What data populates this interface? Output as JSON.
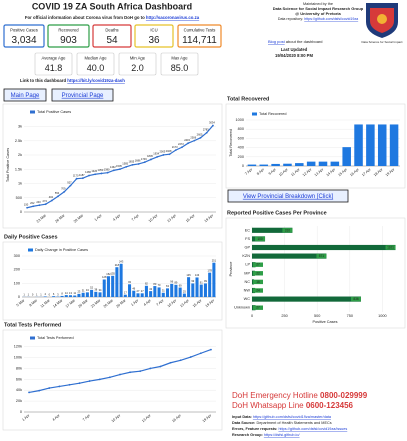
{
  "header": {
    "title": "COVID 19 ZA South Africa Dashboard",
    "subtitle_text": "For official information about Corona virus from DoH go to ",
    "subtitle_link": "http://sacoronavirus.co.za",
    "maintained": "Maintained by the",
    "group": "Data Science for Social Impact Research Group",
    "university": "@ University of Pretoria",
    "repo_text": "Data repository: ",
    "repo_link": "https://github.com/dsfsi/covid19za",
    "logo_caption": "Data Science for Social Impact",
    "blog_link": "Blog post",
    "blog_text": " about the dashboard",
    "updated_label": "Last Updated",
    "updated_value": "19/04/2020 8:00 PM",
    "dash_text": "Link to this dashboard ",
    "dash_link": "https://bit.ly/covid19za-dash"
  },
  "stats": [
    {
      "label": "Positive Cases",
      "value": "3,034",
      "color": "#2f6fd0"
    },
    {
      "label": "Recovered",
      "value": "903",
      "color": "#2e9e47"
    },
    {
      "label": "Deaths",
      "value": "54",
      "color": "#d63a3a"
    },
    {
      "label": "ICU",
      "value": "36",
      "color": "#e6c229"
    },
    {
      "label": "Cumulative Tests",
      "value": "114,711",
      "color": "#ef8a2a"
    }
  ],
  "ages": [
    {
      "label": "Average Age",
      "value": "41.8"
    },
    {
      "label": "Median Age",
      "value": "40.0"
    },
    {
      "label": "Min Age",
      "value": "2.0"
    },
    {
      "label": "Max Age",
      "value": "85.0"
    }
  ],
  "buttons": {
    "main": "Main Page",
    "provincial": "Provincial Page",
    "breakdown": "View Provincial Breakdown [Click]"
  },
  "chart_data": [
    {
      "type": "line",
      "ylabel": "Total Positive Cases",
      "grid": true,
      "data_labels": true,
      "categories": [
        null,
        null,
        null,
        "23 Mar",
        null,
        null,
        "26 Mar",
        null,
        null,
        "29 Mar",
        null,
        null,
        "1 Apr",
        null,
        null,
        "4 Apr",
        null,
        null,
        "7 Apr",
        null,
        null,
        "10 Apr",
        null,
        null,
        "13 Apr",
        null,
        null,
        "16 Apr",
        null,
        null,
        "19 Apr"
      ],
      "series": [
        {
          "name": "Total Positive Cases",
          "color": "#2f6fd0",
          "values": [
            150,
            202,
            240,
            274,
            402,
            554,
            709,
            927,
            1170,
            1187,
            1280,
            1326,
            1353,
            1380,
            1462,
            1505,
            1585,
            1655,
            1686,
            1749,
            1845,
            1934,
            2003,
            2028,
            2173,
            2272,
            2415,
            2506,
            2605,
            2783,
            3034
          ]
        }
      ],
      "ylim": [
        0,
        3300
      ],
      "yticks": [
        0,
        500,
        {
          "value": 1000,
          "label": "1k"
        },
        {
          "value": 1500,
          "label": "1.5k"
        },
        {
          "value": 2000,
          "label": "2k"
        },
        {
          "value": 2500,
          "label": "2.5k"
        },
        {
          "value": 3000,
          "label": "3k"
        }
      ]
    },
    {
      "type": "bar",
      "title": "Total Recovered",
      "ylabel": "Total Recovered",
      "grid": true,
      "categories": [
        "7 Apr",
        "8 Apr",
        "9 Apr",
        "10 Apr",
        "11 Apr",
        "12 Apr",
        "13 Apr",
        "14 Apr",
        "15 Apr",
        "16 Apr",
        "17 Apr",
        "18 Apr",
        "19 Apr"
      ],
      "series": [
        {
          "name": "Total Recovered",
          "color": "#1e78e0",
          "values": [
            31,
            31,
            45,
            50,
            63,
            95,
            95,
            95,
            410,
            903,
            903,
            903,
            903
          ]
        }
      ],
      "ylim": [
        0,
        1000
      ],
      "yticks": [
        0,
        200,
        400,
        600,
        800,
        1000
      ]
    },
    {
      "type": "bar",
      "title": "Daily Positive Cases",
      "grid": true,
      "data_labels": true,
      "categories": [
        "5 Mar",
        null,
        null,
        "8 Mar",
        null,
        null,
        "11 Mar",
        null,
        null,
        "14 Mar",
        null,
        null,
        "17 Mar",
        null,
        null,
        "20 Mar",
        null,
        null,
        "23 Mar",
        null,
        null,
        "26 Mar",
        null,
        null,
        "29 Mar",
        null,
        null,
        "1 Apr",
        null,
        null,
        "4 Apr",
        null,
        null,
        "7 Apr",
        null,
        null,
        "10 Apr",
        null,
        null,
        "13 Apr",
        null,
        null,
        "16 Apr",
        null,
        null,
        "19 Apr"
      ],
      "series": [
        {
          "name": "Daily Change in Positive Cases",
          "color": "#1e78e0",
          "values": [
            1,
            1,
            0,
            1,
            1,
            4,
            0,
            6,
            3,
            8,
            14,
            13,
            11,
            23,
            31,
            34,
            52,
            38,
            34,
            128,
            152,
            155,
            218,
            243,
            17,
            93,
            46,
            27,
            27,
            82,
            43,
            80,
            70,
            31,
            63,
            96,
            89,
            69,
            25,
            145,
            99,
            143,
            91,
            99,
            178,
            251
          ]
        }
      ],
      "ylim": [
        0,
        300
      ],
      "yticks": [
        0,
        100,
        200,
        300
      ]
    },
    {
      "type": "line",
      "title": "Total Tests Performed",
      "grid": true,
      "categories": [
        "1 Apr",
        null,
        null,
        "4 Apr",
        null,
        null,
        "7 Apr",
        null,
        null,
        "10 Apr",
        null,
        null,
        "13 Apr",
        null,
        null,
        "16 Apr",
        null,
        null,
        "19 Apr"
      ],
      "series": [
        {
          "name": "Total Tests Performed",
          "color": "#2f6fd0",
          "values": [
            36000,
            39259,
            44000,
            47000,
            50000,
            53000,
            56873,
            60000,
            63776,
            68874,
            73028,
            75053,
            80085,
            83663,
            90515,
            95060,
            101000,
            108000,
            114711
          ]
        }
      ],
      "ylim": [
        0,
        125000
      ],
      "yticks": [
        0,
        {
          "value": 20000,
          "label": "20k"
        },
        {
          "value": 40000,
          "label": "40k"
        },
        {
          "value": 60000,
          "label": "60k"
        },
        {
          "value": 80000,
          "label": "80k"
        },
        {
          "value": 100000,
          "label": "100k"
        },
        {
          "value": 120000,
          "label": "120k"
        }
      ]
    },
    {
      "type": "hbar",
      "title": "Reported Positive Cases Per Province",
      "xlabel": "Positive Cases",
      "ylabel": "Province",
      "grid": true,
      "data_labels": true,
      "categories": [
        "EC",
        "FS",
        "GP",
        "KZN",
        "LP",
        "MP",
        "NC",
        "NW",
        "WC",
        "Unknown"
      ],
      "series": [
        {
          "name": "Positive Cases",
          "color": "#12693a",
          "values": [
            310,
            100,
            1101,
            571,
            27,
            22,
            16,
            24,
            836,
            27
          ]
        }
      ],
      "xlim": [
        0,
        1120
      ],
      "xticks": [
        0,
        250,
        500,
        750,
        1000
      ]
    }
  ],
  "footer": {
    "hotline_text": "DoH Emergency Hotline ",
    "hotline_number": "0800-029999",
    "whatsapp_text": "DoH Whatsapp Line ",
    "whatsapp_number": "0600-123456",
    "lines": [
      {
        "label": "Input Data: ",
        "text": "https://github.com/dsfsi/covid19za/master/data"
      },
      {
        "label": "Data Source: ",
        "text": "Department of Health Statements and MECs"
      },
      {
        "label": "Errors, Feature requests: ",
        "text": "https://github.com/dsfsi/covid19za/issues"
      },
      {
        "label": "Research Group: ",
        "text": "https://dsfsi.github.io/"
      }
    ]
  }
}
